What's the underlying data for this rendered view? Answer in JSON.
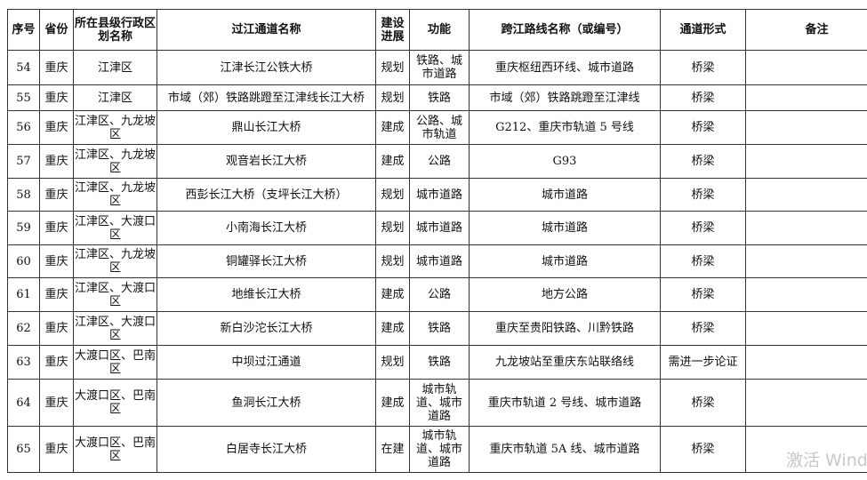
{
  "headers": [
    "序号",
    "省份",
    "所在县级行政区划名称",
    "过江通道名称",
    "建设进展",
    "功能",
    "跨江路线名称（或编号）",
    "通道形式",
    "备注"
  ],
  "rows": [
    [
      "54",
      "重庆",
      "江津区",
      "江津长江公铁大桥",
      "规划",
      "铁路、城市道路",
      "重庆枢纽西环线、城市道路",
      "桥梁",
      ""
    ],
    [
      "55",
      "重庆",
      "江津区",
      "市域（郊）铁路跳蹬至江津线长江大桥",
      "规划",
      "铁路",
      "市域（郊）铁路跳蹬至江津线",
      "桥梁",
      ""
    ],
    [
      "56",
      "重庆",
      "江津区、九龙坡区",
      "鼎山长江大桥",
      "建成",
      "公路、城市轨道",
      "G212、重庆市轨道 5 号线",
      "桥梁",
      ""
    ],
    [
      "57",
      "重庆",
      "江津区、九龙坡区",
      "观音岩长江大桥",
      "建成",
      "公路",
      "G93",
      "桥梁",
      ""
    ],
    [
      "58",
      "重庆",
      "江津区、九龙坡区",
      "西彭长江大桥（支坪长江大桥）",
      "规划",
      "城市道路",
      "城市道路",
      "桥梁",
      ""
    ],
    [
      "59",
      "重庆",
      "江津区、大渡口区",
      "小南海长江大桥",
      "规划",
      "城市道路",
      "城市道路",
      "桥梁",
      ""
    ],
    [
      "60",
      "重庆",
      "江津区、九龙坡区",
      "铜罐驿长江大桥",
      "规划",
      "城市道路",
      "城市道路",
      "桥梁",
      ""
    ],
    [
      "61",
      "重庆",
      "江津区、大渡口区",
      "地维长江大桥",
      "建成",
      "公路",
      "地方公路",
      "桥梁",
      ""
    ],
    [
      "62",
      "重庆",
      "江津区、大渡口区",
      "新白沙沱长江大桥",
      "建成",
      "铁路",
      "重庆至贵阳铁路、川黔铁路",
      "桥梁",
      ""
    ],
    [
      "63",
      "重庆",
      "大渡口区、巴南区",
      "中坝过江通道",
      "规划",
      "铁路",
      "九龙坡站至重庆东站联络线",
      "需进一步论证",
      ""
    ],
    [
      "64",
      "重庆",
      "大渡口区、巴南区",
      "鱼洞长江大桥",
      "建成",
      "城市轨道、城市道路",
      "重庆市轨道 2 号线、城市道路",
      "桥梁",
      ""
    ],
    [
      "65",
      "重庆",
      "大渡口区、巴南区",
      "白居寺长江大桥",
      "在建",
      "城市轨道、城市道路",
      "重庆市轨道 5A 线、城市道路",
      "桥梁",
      ""
    ]
  ],
  "watermark": "激活 Windows"
}
